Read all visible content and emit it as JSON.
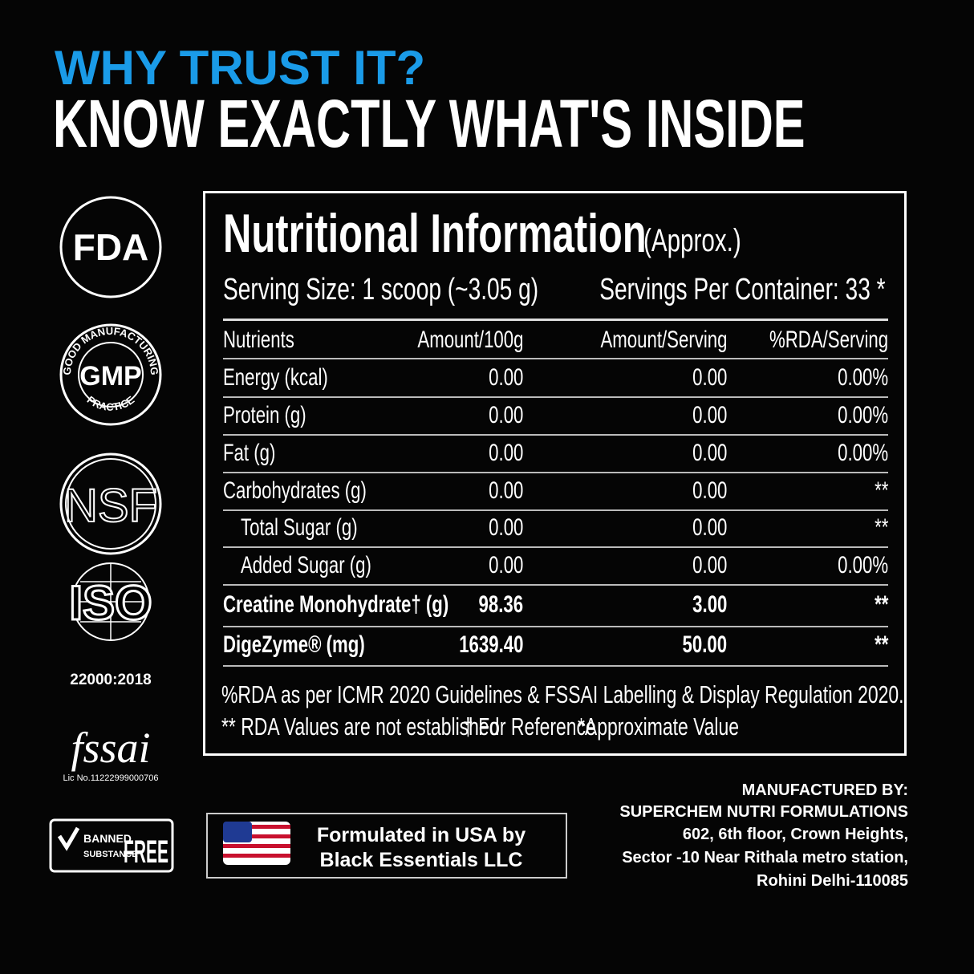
{
  "header": {
    "eyebrow": "WHY TRUST IT?",
    "title": "KNOW EXACTLY WHAT'S INSIDE"
  },
  "badges": {
    "fda": "FDA",
    "gmp": {
      "label": "GMP",
      "ring_top": "GOOD MANUFACTURING",
      "ring_bottom": "PRACTICE"
    },
    "nsf": "NSF",
    "iso": {
      "label": "ISO",
      "standard": "22000:2018"
    },
    "fssai": {
      "label": "fssai",
      "license": "Lic No.11222999000706"
    },
    "banned": {
      "line1": "BANNED",
      "line2": "SUBSTANCE",
      "word": "FREE"
    }
  },
  "panel": {
    "title": "Nutritional Information",
    "subtitle": "(Approx.)",
    "serving_size": "Serving Size: 1 scoop (~3.05 g)",
    "servings_per_container": "Servings Per Container: 33 *"
  },
  "table": {
    "header": [
      "Nutrients",
      "Amount/100g",
      "Amount/Serving",
      "%RDA/Serving"
    ],
    "rows": [
      [
        "Energy (kcal)",
        "0.00",
        "0.00",
        "0.00%"
      ],
      [
        "Protein (g)",
        "0.00",
        "0.00",
        "0.00%"
      ],
      [
        "Fat (g)",
        "0.00",
        "0.00",
        "0.00%"
      ],
      [
        "Carbohydrates (g)",
        "0.00",
        "0.00",
        "**"
      ],
      [
        "Total Sugar (g)",
        "0.00",
        "0.00",
        "**"
      ],
      [
        "Added Sugar (g)",
        "0.00",
        "0.00",
        "0.00%"
      ],
      [
        "Creatine Monohydrate† (g)",
        "98.36",
        "3.00",
        "**"
      ],
      [
        "DigeZyme® (mg)",
        "1639.40",
        "50.00",
        "**"
      ]
    ]
  },
  "notes": {
    "line1": "%RDA as per ICMR 2020 Guidelines & FSSAI Labelling & Display Regulation 2020.",
    "line2": [
      "** RDA Values are not established",
      "† For Reference",
      "*Approximate Value"
    ]
  },
  "footer": {
    "formulated": [
      "Formulated in USA by",
      "Black Essentials LLC"
    ],
    "manufacturer": [
      "MANUFACTURED BY:",
      "SUPERCHEM NUTRI FORMULATIONS",
      "602, 6th floor, Crown Heights,",
      "Sector -10 Near Rithala metro station,",
      "Rohini Delhi-110085"
    ]
  }
}
